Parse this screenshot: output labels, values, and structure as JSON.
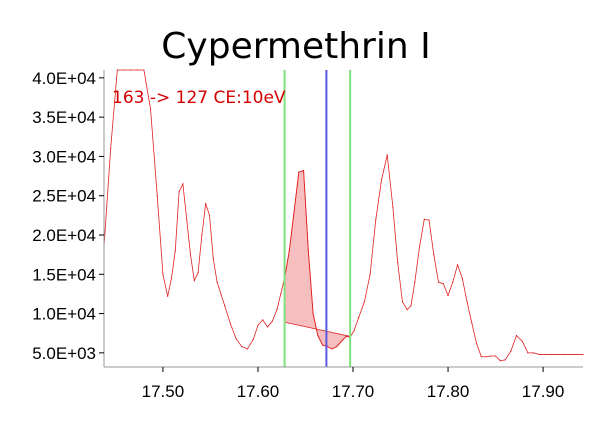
{
  "chart_data": {
    "type": "line",
    "title": "Cypermethrin I",
    "annotation": "163 -> 127 CE:10eV",
    "xlabel": "",
    "ylabel": "",
    "xlim": [
      17.438,
      17.942
    ],
    "ylim": [
      3200,
      41000
    ],
    "x_ticks": [
      17.5,
      17.6,
      17.7,
      17.8,
      17.9
    ],
    "x_tick_labels": [
      "17.50",
      "17.60",
      "17.70",
      "17.80",
      "17.90"
    ],
    "y_ticks": [
      5000,
      10000,
      15000,
      20000,
      25000,
      30000,
      35000,
      40000
    ],
    "y_tick_labels": [
      "5.0E+03",
      "1.0E+04",
      "1.5E+04",
      "2.0E+04",
      "2.5E+04",
      "3.0E+04",
      "3.5E+04",
      "4.0E+04"
    ],
    "grid": false,
    "colors": {
      "trace": "#e02020",
      "annotation": "#d40000",
      "boundary": "#7ee07e",
      "apex": "#5a5ae0",
      "peak_fill": "#f5b3b3"
    },
    "series": [
      {
        "x": [
          17.438,
          17.445,
          17.452,
          17.459,
          17.466,
          17.473,
          17.48,
          17.487,
          17.494,
          17.5,
          17.505,
          17.509,
          17.513,
          17.517,
          17.521,
          17.525,
          17.529,
          17.533,
          17.537,
          17.541,
          17.545,
          17.549,
          17.553,
          17.557,
          17.561,
          17.565,
          17.571,
          17.577,
          17.583,
          17.589,
          17.595,
          17.6,
          17.605,
          17.61,
          17.615,
          17.62,
          17.624,
          17.628,
          17.633,
          17.638,
          17.643,
          17.648,
          17.653,
          17.658,
          17.663,
          17.668,
          17.673,
          17.678,
          17.683,
          17.688,
          17.693,
          17.697,
          17.701,
          17.706,
          17.712,
          17.718,
          17.724,
          17.73,
          17.736,
          17.742,
          17.747,
          17.752,
          17.757,
          17.761,
          17.765,
          17.77,
          17.775,
          17.78,
          17.785,
          17.79,
          17.795,
          17.8,
          17.805,
          17.81,
          17.815,
          17.82,
          17.825,
          17.83,
          17.835,
          17.84,
          17.845,
          17.85,
          17.855,
          17.86,
          17.866,
          17.872,
          17.878,
          17.884,
          17.89,
          17.896,
          17.902,
          17.908,
          17.915,
          17.922,
          17.929,
          17.936,
          17.942
        ],
        "y": [
          18500,
          31000,
          41000,
          41000,
          41000,
          41000,
          41000,
          36000,
          25000,
          15000,
          12200,
          14500,
          18000,
          25500,
          26500,
          22000,
          17500,
          14200,
          15200,
          20000,
          24000,
          22500,
          17000,
          14000,
          12500,
          11000,
          8700,
          6800,
          5800,
          5500,
          6700,
          8500,
          9200,
          8300,
          9000,
          10500,
          12500,
          14500,
          18000,
          23000,
          28000,
          28200,
          18000,
          10000,
          7200,
          6000,
          5800,
          5500,
          5800,
          6500,
          7100,
          7000,
          7800,
          9500,
          11500,
          15000,
          22000,
          27000,
          30200,
          23500,
          16500,
          11500,
          10500,
          11000,
          14000,
          18500,
          22000,
          21900,
          17500,
          14000,
          13800,
          12300,
          14000,
          16200,
          14500,
          11500,
          8800,
          6200,
          4500,
          4500,
          4600,
          4600,
          4000,
          4100,
          5200,
          7200,
          6500,
          5000,
          5000,
          4800,
          4800,
          4800,
          4800,
          4800,
          4800,
          4800,
          4800
        ]
      }
    ],
    "integration_start": 17.628,
    "integration_end": 17.697,
    "apex_rt": 17.672,
    "baseline_y": [
      8900,
      7100
    ]
  }
}
